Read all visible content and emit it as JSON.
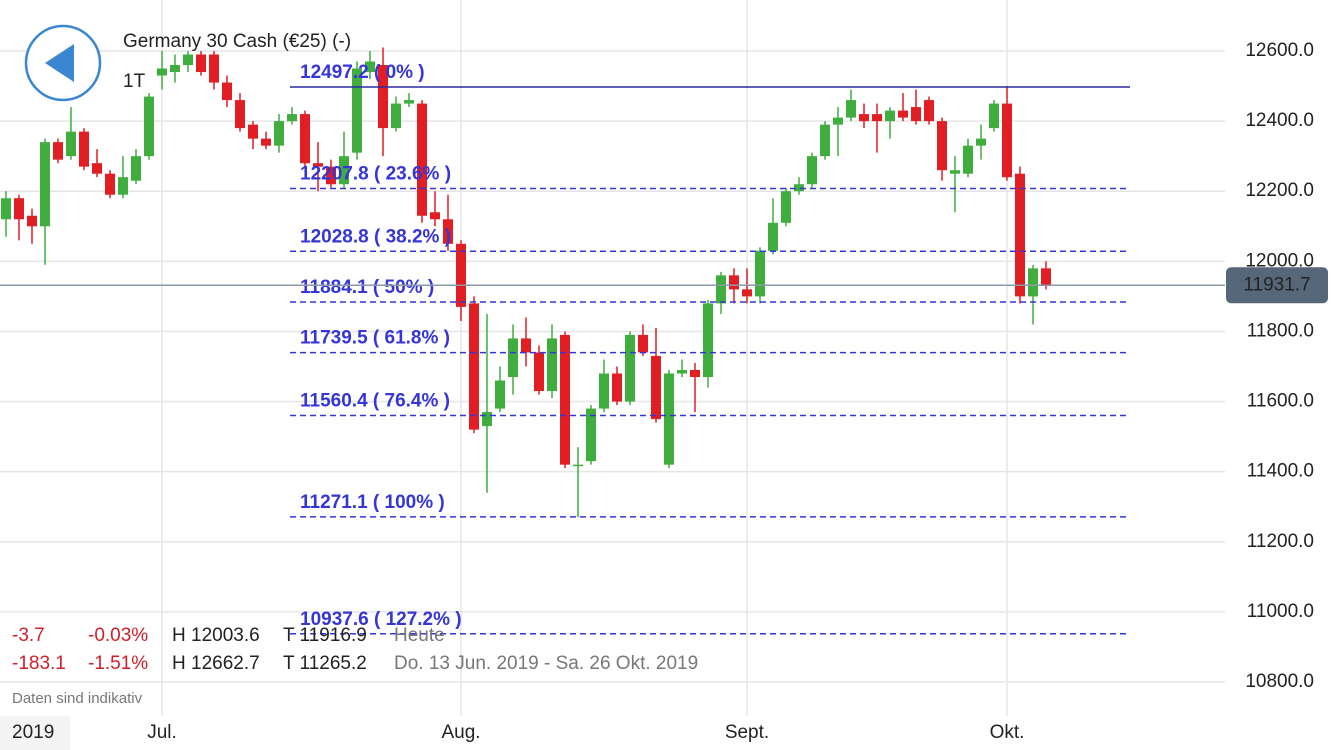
{
  "header": {
    "title": "Germany 30 Cash (€25) (-)",
    "period": "1T"
  },
  "stats": [
    {
      "change": "-3.7",
      "percent": "-0.03%",
      "high": "H 12003.6",
      "low": "T 11916.9",
      "range": "Heute"
    },
    {
      "change": "-183.1",
      "percent": "-1.51%",
      "high": "H 12662.7",
      "low": "T 11265.2",
      "range": "Do. 13 Jun. 2019 - Sa. 26 Okt. 2019"
    }
  ],
  "note": "Daten sind indikativ",
  "year": "2019",
  "chart_data": {
    "type": "candlestick",
    "categories": [
      null,
      null,
      null,
      null,
      null,
      null,
      null,
      null,
      null,
      null,
      null,
      null,
      "Jul.",
      null,
      null,
      null,
      null,
      null,
      null,
      null,
      null,
      null,
      null,
      null,
      null,
      null,
      null,
      null,
      null,
      null,
      null,
      null,
      null,
      null,
      null,
      "Aug.",
      null,
      null,
      null,
      null,
      null,
      null,
      null,
      null,
      null,
      null,
      null,
      null,
      null,
      null,
      null,
      null,
      null,
      null,
      null,
      null,
      null,
      "Sept.",
      null,
      null,
      null,
      null,
      null,
      null,
      null,
      null,
      null,
      null,
      null,
      null,
      null,
      null,
      null,
      null,
      null,
      null,
      null,
      "Okt.",
      null,
      null,
      null
    ],
    "open": [
      12120,
      12180,
      12130,
      12100,
      12340,
      12300,
      12370,
      12280,
      12250,
      12190,
      12230,
      12300,
      12530,
      12540,
      12560,
      12590,
      12590,
      12510,
      12460,
      12390,
      12350,
      12330,
      12400,
      12420,
      12280,
      12270,
      12220,
      12310,
      12540,
      12560,
      12380,
      12450,
      12450,
      12140,
      12120,
      12050,
      11880,
      11530,
      11580,
      11670,
      11780,
      11740,
      11630,
      11790,
      11420,
      11430,
      11580,
      11680,
      11600,
      11790,
      11730,
      11420,
      11680,
      11690,
      11670,
      11880,
      11960,
      11920,
      11900,
      12030,
      12110,
      12200,
      12220,
      12300,
      12390,
      12410,
      12420,
      12420,
      12400,
      12430,
      12440,
      12460,
      12400,
      12250,
      12250,
      12330,
      12380,
      12450,
      12250,
      11900,
      11980
    ],
    "high": [
      12200,
      12190,
      12150,
      12350,
      12350,
      12440,
      12380,
      12320,
      12260,
      12300,
      12320,
      12480,
      12600,
      12590,
      12600,
      12600,
      12600,
      12530,
      12480,
      12400,
      12370,
      12420,
      12440,
      12430,
      12340,
      12290,
      12370,
      12570,
      12600,
      12610,
      12470,
      12480,
      12460,
      12200,
      12190,
      12060,
      11900,
      11850,
      11700,
      11820,
      11840,
      11760,
      11820,
      11800,
      11470,
      11590,
      11720,
      11700,
      11800,
      11820,
      11810,
      11690,
      11720,
      11710,
      11890,
      11970,
      11980,
      11980,
      12040,
      12180,
      12210,
      12240,
      12310,
      12400,
      12440,
      12490,
      12450,
      12450,
      12440,
      12480,
      12490,
      12470,
      12410,
      12300,
      12350,
      12390,
      12460,
      12500,
      12270,
      11990,
      12000
    ],
    "low": [
      12070,
      12060,
      12050,
      11990,
      12280,
      12290,
      12260,
      12240,
      12180,
      12180,
      12220,
      12290,
      12490,
      12510,
      12540,
      12530,
      12490,
      12440,
      12370,
      12320,
      12320,
      12310,
      12390,
      12270,
      12200,
      12210,
      12210,
      12290,
      12520,
      12300,
      12370,
      12440,
      12110,
      12100,
      12030,
      11830,
      11510,
      11340,
      11570,
      11620,
      11700,
      11620,
      11610,
      11410,
      11270,
      11420,
      11570,
      11590,
      11590,
      11730,
      11540,
      11410,
      11670,
      11570,
      11640,
      11850,
      11880,
      11880,
      11880,
      12020,
      12100,
      12190,
      12210,
      12290,
      12300,
      12400,
      12380,
      12310,
      12350,
      12400,
      12390,
      12390,
      12230,
      12140,
      12240,
      12290,
      12370,
      12230,
      11880,
      11820,
      11920
    ],
    "close": [
      12180,
      12120,
      12100,
      12340,
      12290,
      12370,
      12270,
      12250,
      12190,
      12240,
      12300,
      12470,
      12550,
      12560,
      12590,
      12540,
      12510,
      12460,
      12380,
      12350,
      12330,
      12400,
      12420,
      12280,
      12270,
      12220,
      12300,
      12550,
      12570,
      12380,
      12450,
      12460,
      12130,
      12120,
      12050,
      11870,
      11520,
      11570,
      11660,
      11780,
      11740,
      11630,
      11780,
      11420,
      11420,
      11580,
      11680,
      11600,
      11790,
      11740,
      11550,
      11680,
      11690,
      11670,
      11880,
      11960,
      11920,
      11900,
      12030,
      12110,
      12200,
      12220,
      12300,
      12390,
      12410,
      12460,
      12400,
      12400,
      12430,
      12410,
      12400,
      12400,
      12260,
      12260,
      12330,
      12350,
      12450,
      12240,
      11900,
      11980,
      11930
    ],
    "up_color": "#3fae3f",
    "down_color": "#e01e24",
    "ylim": [
      10800,
      12600
    ],
    "yticks": [
      {
        "value": 10800,
        "label": "10800.0"
      },
      {
        "value": 11000,
        "label": "11000.0"
      },
      {
        "value": 11200,
        "label": "11200.0"
      },
      {
        "value": 11400,
        "label": "11400.0"
      },
      {
        "value": 11600,
        "label": "11600.0"
      },
      {
        "value": 11800,
        "label": "11800.0"
      },
      {
        "value": 12000,
        "label": "12000.0"
      },
      {
        "value": 12200,
        "label": "12200.0"
      },
      {
        "value": 12400,
        "label": "12400.0"
      },
      {
        "value": 12600,
        "label": "12600.0"
      }
    ],
    "grid": true,
    "fibonacci": {
      "color": "#3535d8",
      "levels": [
        {
          "value": 12497.2,
          "label": "12497.2 ( 0% )"
        },
        {
          "value": 12207.8,
          "label": "12207.8 ( 23.6% )"
        },
        {
          "value": 12028.8,
          "label": "12028.8 ( 38.2% )"
        },
        {
          "value": 11884.1,
          "label": "11884.1 ( 50% )"
        },
        {
          "value": 11739.5,
          "label": "11739.5 ( 61.8% )"
        },
        {
          "value": 11560.4,
          "label": "11560.4 ( 76.4% )"
        },
        {
          "value": 11271.1,
          "label": "11271.1 ( 100% )"
        },
        {
          "value": 10937.6,
          "label": "10937.6 ( 127.2% )"
        }
      ]
    },
    "current_price": 11931.7
  }
}
